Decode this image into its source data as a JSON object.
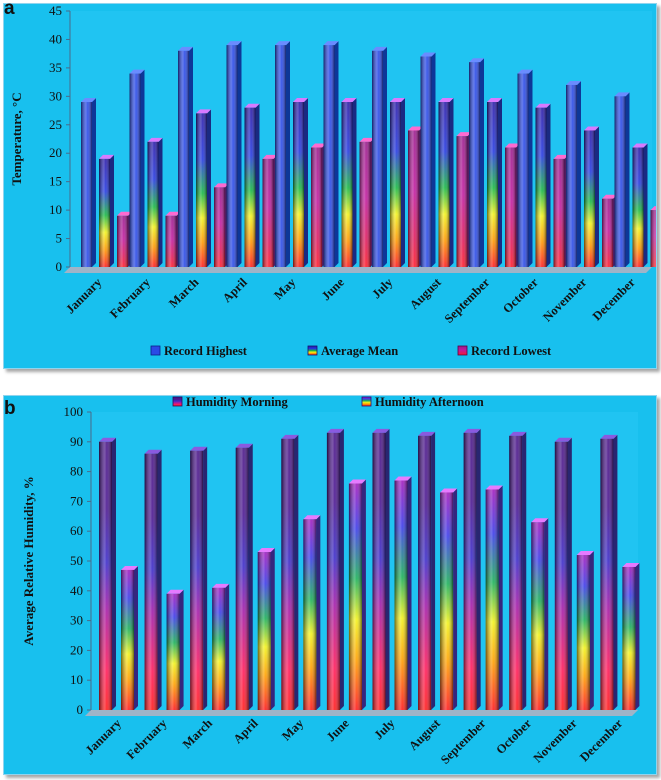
{
  "chart_data": [
    {
      "panel_label": "a",
      "type": "bar",
      "title": "",
      "xlabel": "",
      "ylabel": "Temperature, °C",
      "ylim": [
        0,
        45
      ],
      "yticks": [
        0,
        5,
        10,
        15,
        20,
        25,
        30,
        35,
        40,
        45
      ],
      "grid": false,
      "legend_position": "bottom",
      "categories": [
        "January",
        "February",
        "March",
        "April",
        "May",
        "June",
        "July",
        "August",
        "September",
        "October",
        "November",
        "December"
      ],
      "series": [
        {
          "name": "Record Highest",
          "values": [
            29,
            34,
            38,
            39,
            39,
            39,
            38,
            37,
            36,
            34,
            32,
            30
          ]
        },
        {
          "name": "Average Mean",
          "values": [
            19,
            22,
            27,
            28,
            29,
            29,
            29,
            29,
            29,
            28,
            24,
            21
          ]
        },
        {
          "name": "Record Lowest",
          "values": [
            9,
            9,
            14,
            19,
            21,
            22,
            24,
            23,
            21,
            19,
            12,
            10
          ]
        }
      ]
    },
    {
      "panel_label": "b",
      "type": "bar",
      "title": "",
      "xlabel": "",
      "ylabel": "Average Relative  Humidity, %",
      "ylim": [
        0,
        100
      ],
      "yticks": [
        0,
        10,
        20,
        30,
        40,
        50,
        60,
        70,
        80,
        90,
        100
      ],
      "grid": false,
      "legend_position": "top",
      "categories": [
        "January",
        "February",
        "March",
        "April",
        "May",
        "June",
        "July",
        "August",
        "September",
        "October",
        "November",
        "December"
      ],
      "series": [
        {
          "name": "Humidity Morning",
          "values": [
            90,
            86,
            87,
            88,
            91,
            93,
            93,
            92,
            93,
            92,
            90,
            91
          ]
        },
        {
          "name": "Humidity Afternoon",
          "values": [
            47,
            39,
            41,
            53,
            64,
            76,
            77,
            73,
            74,
            63,
            52,
            48
          ]
        }
      ]
    }
  ]
}
